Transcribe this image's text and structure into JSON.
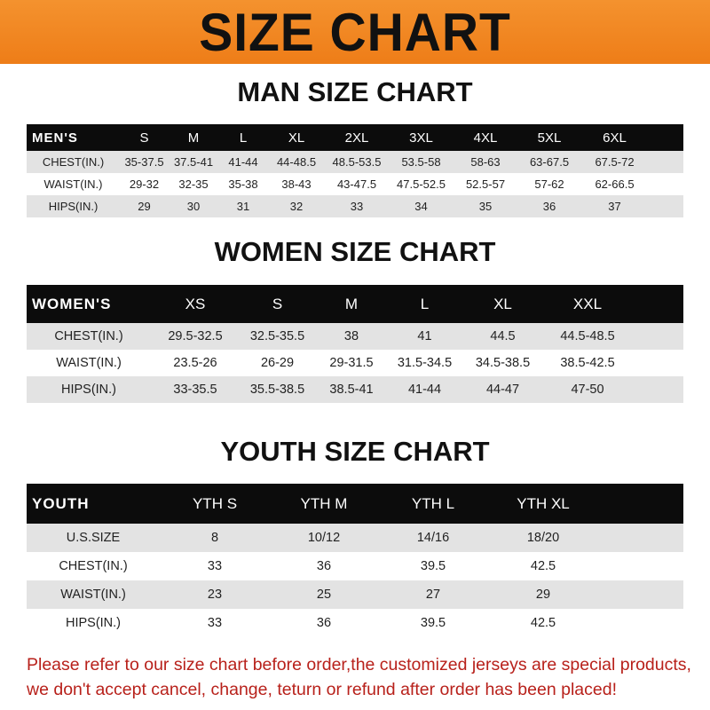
{
  "banner_title": "SIZE CHART",
  "colors": {
    "banner": "#f08520",
    "header_row": "#0c0c0c",
    "stripe": "#e3e3e3",
    "note": "#b8211b"
  },
  "men": {
    "title": "MAN SIZE CHART",
    "header": [
      "MEN'S",
      "S",
      "M",
      "L",
      "XL",
      "2XL",
      "3XL",
      "4XL",
      "5XL",
      "6XL"
    ],
    "rows": [
      [
        "CHEST(IN.)",
        "35-37.5",
        "37.5-41",
        "41-44",
        "44-48.5",
        "48.5-53.5",
        "53.5-58",
        "58-63",
        "63-67.5",
        "67.5-72"
      ],
      [
        "WAIST(IN.)",
        "29-32",
        "32-35",
        "35-38",
        "38-43",
        "43-47.5",
        "47.5-52.5",
        "52.5-57",
        "57-62",
        "62-66.5"
      ],
      [
        "HIPS(IN.)",
        "29",
        "30",
        "31",
        "32",
        "33",
        "34",
        "35",
        "36",
        "37"
      ]
    ]
  },
  "women": {
    "title": "WOMEN SIZE CHART",
    "header": [
      "WOMEN'S",
      "XS",
      "S",
      "M",
      "L",
      "XL",
      "XXL"
    ],
    "rows": [
      [
        "CHEST(IN.)",
        "29.5-32.5",
        "32.5-35.5",
        "38",
        "41",
        "44.5",
        "44.5-48.5"
      ],
      [
        "WAIST(IN.)",
        "23.5-26",
        "26-29",
        "29-31.5",
        "31.5-34.5",
        "34.5-38.5",
        "38.5-42.5"
      ],
      [
        "HIPS(IN.)",
        "33-35.5",
        "35.5-38.5",
        "38.5-41",
        "41-44",
        "44-47",
        "47-50"
      ]
    ]
  },
  "youth": {
    "title": "YOUTH SIZE CHART",
    "header": [
      "YOUTH",
      "YTH S",
      "YTH M",
      "YTH L",
      "YTH XL"
    ],
    "rows": [
      [
        "U.S.SIZE",
        "8",
        "10/12",
        "14/16",
        "18/20"
      ],
      [
        "CHEST(IN.)",
        "33",
        "36",
        "39.5",
        "42.5"
      ],
      [
        "WAIST(IN.)",
        "23",
        "25",
        "27",
        "29"
      ],
      [
        "HIPS(IN.)",
        "33",
        "36",
        "39.5",
        "42.5"
      ]
    ]
  },
  "note": {
    "line1": "Please refer to our size chart before order,the customized jerseys are special products,",
    "line2": "we don't accept cancel, change, teturn or refund after order has been placed!"
  }
}
